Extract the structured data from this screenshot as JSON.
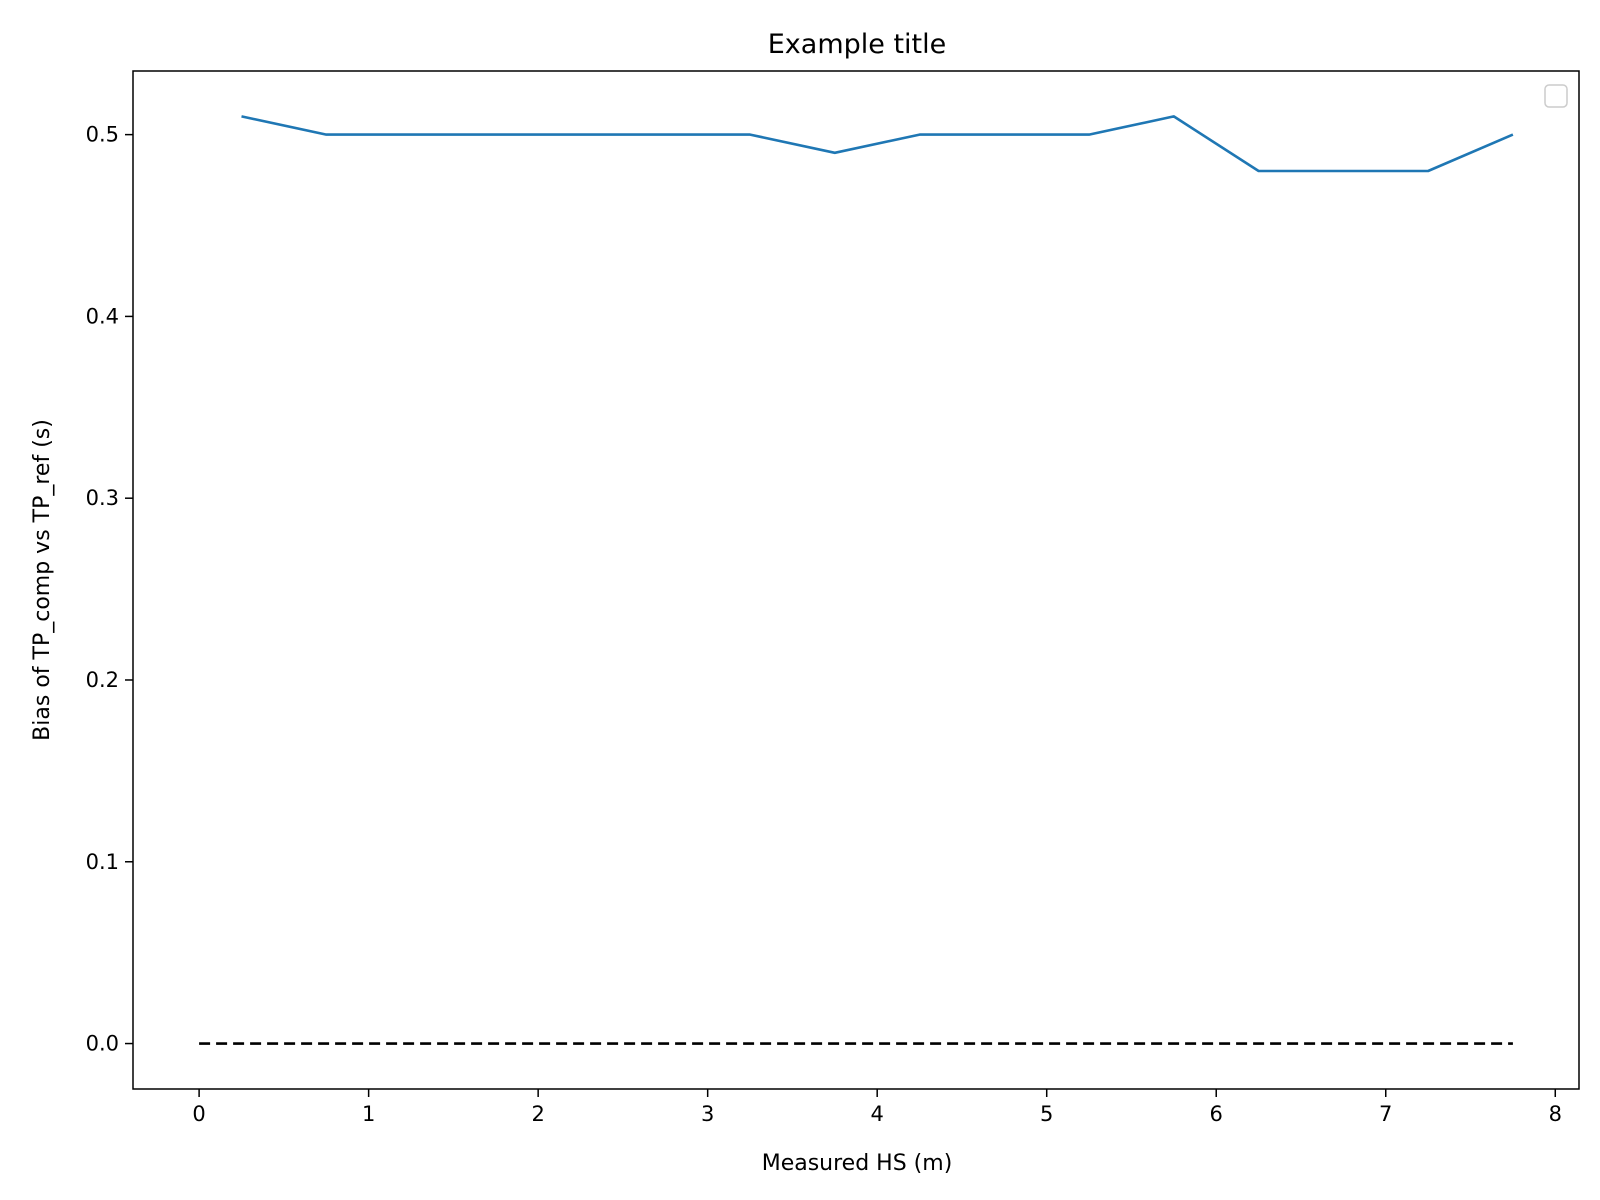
{
  "chart_data": {
    "type": "line",
    "title": "Example title",
    "xlabel": "Measured HS (m)",
    "ylabel": "Bias of TP_comp vs TP_ref (s)",
    "xlim": [
      -0.39,
      8.14
    ],
    "ylim": [
      -0.025,
      0.535
    ],
    "x_ticks": [
      0,
      1,
      2,
      3,
      4,
      5,
      6,
      7,
      8
    ],
    "x_tick_labels": [
      "0",
      "1",
      "2",
      "3",
      "4",
      "5",
      "6",
      "7",
      "8"
    ],
    "y_ticks": [
      0.0,
      0.1,
      0.2,
      0.3,
      0.4,
      0.5
    ],
    "y_tick_labels": [
      "0.0",
      "0.1",
      "0.2",
      "0.3",
      "0.4",
      "0.5"
    ],
    "grid": false,
    "legend": {
      "placement": "top-right",
      "entries": []
    },
    "series": [
      {
        "style": "solid",
        "color": "#1f77b4",
        "x": [
          0.25,
          0.75,
          1.25,
          1.75,
          2.25,
          2.75,
          3.25,
          3.75,
          4.25,
          4.75,
          5.25,
          5.75,
          6.25,
          6.75,
          7.25,
          7.75
        ],
        "y": [
          0.51,
          0.5,
          0.5,
          0.5,
          0.5,
          0.5,
          0.5,
          0.49,
          0.5,
          0.5,
          0.5,
          0.51,
          0.48,
          0.48,
          0.48,
          0.5
        ]
      },
      {
        "style": "dashed",
        "color": "#000000",
        "x": [
          0,
          7.75
        ],
        "y": [
          0.0,
          0.0
        ]
      }
    ]
  }
}
